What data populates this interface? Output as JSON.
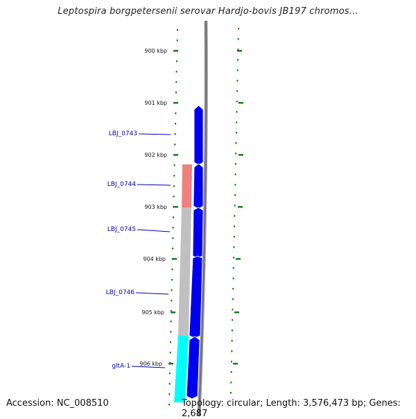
{
  "title": "Leptospira borgpetersenii serovar Hardjo-bovis JB197 chromos...",
  "ruler": {
    "ticks": [
      {
        "label": "900 kbp",
        "kbp": 900
      },
      {
        "label": "901 kbp",
        "kbp": 901
      },
      {
        "label": "902 kbp",
        "kbp": 902
      },
      {
        "label": "903 kbp",
        "kbp": 903
      },
      {
        "label": "904 kbp",
        "kbp": 904
      },
      {
        "label": "905 kbp",
        "kbp": 905
      },
      {
        "label": "906 kbp",
        "kbp": 906
      }
    ]
  },
  "genes": [
    {
      "label": "LBJ_0743",
      "color": "#0000ee"
    },
    {
      "label": "LBJ_0744",
      "color": "#0000ee"
    },
    {
      "label": "LBJ_0745",
      "color": "#0000ee"
    },
    {
      "label": "LBJ_0746",
      "color": "#0000ee"
    },
    {
      "label": "gltA-1",
      "color": "#0000ee"
    }
  ],
  "features": [
    {
      "name": "red-feature",
      "color": "#f08080"
    },
    {
      "name": "grey-feature",
      "color": "#c0c0c0"
    },
    {
      "name": "cyan-feature",
      "color": "#00ffff"
    }
  ],
  "colors": {
    "gene_fill": "#0000ee",
    "gene_label": "#0000aa",
    "tick": "#1a7a1a",
    "backbone": "#808080"
  },
  "footer": {
    "accession_label": "Accession:",
    "accession_value": "NC_008510",
    "topology_label": "Topology:",
    "topology_value": "circular;",
    "length_label": "Length:",
    "length_value": "3,576,473 bp;",
    "genes_label": "Genes:",
    "genes_value": "2,687"
  }
}
